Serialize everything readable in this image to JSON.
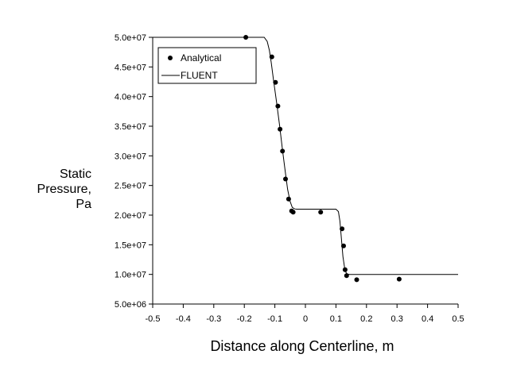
{
  "chart_data": {
    "type": "scatter",
    "title": "",
    "xlabel": "Distance along Centerline, m",
    "ylabel_lines": [
      "Static",
      "Pressure,",
      "Pa"
    ],
    "xlim": [
      -0.5,
      0.5
    ],
    "ylim": [
      5000000,
      50000000
    ],
    "grid": false,
    "legend_position": "top-left",
    "x_ticks": [
      {
        "value": -0.5,
        "label": "-0.5"
      },
      {
        "value": -0.4,
        "label": "-0.4"
      },
      {
        "value": -0.3,
        "label": "-0.3"
      },
      {
        "value": -0.2,
        "label": "-0.2"
      },
      {
        "value": -0.1,
        "label": "-0.1"
      },
      {
        "value": 0.0,
        "label": "0"
      },
      {
        "value": 0.1,
        "label": "0.1"
      },
      {
        "value": 0.2,
        "label": "0.2"
      },
      {
        "value": 0.3,
        "label": "0.3"
      },
      {
        "value": 0.4,
        "label": "0.4"
      },
      {
        "value": 0.5,
        "label": "0.5"
      }
    ],
    "y_ticks": [
      {
        "value": 5000000,
        "label": "5.0e+06"
      },
      {
        "value": 10000000,
        "label": "1.0e+07"
      },
      {
        "value": 15000000,
        "label": "1.5e+07"
      },
      {
        "value": 20000000,
        "label": "2.0e+07"
      },
      {
        "value": 25000000,
        "label": "2.5e+07"
      },
      {
        "value": 30000000,
        "label": "3.0e+07"
      },
      {
        "value": 35000000,
        "label": "3.5e+07"
      },
      {
        "value": 40000000,
        "label": "4.0e+07"
      },
      {
        "value": 45000000,
        "label": "4.5e+07"
      },
      {
        "value": 50000000,
        "label": "5.0e+07"
      }
    ],
    "series": [
      {
        "name": "Analytical",
        "style": "markers",
        "color": "#000000",
        "x": [
          -0.195,
          -0.11,
          -0.098,
          -0.09,
          -0.083,
          -0.075,
          -0.065,
          -0.055,
          -0.045,
          -0.04,
          0.05,
          0.12,
          0.125,
          0.13,
          0.135,
          0.168,
          0.307
        ],
        "y": [
          50000000,
          46700000,
          42400000,
          38400000,
          34500000,
          30800000,
          26100000,
          22700000,
          20700000,
          20500000,
          20500000,
          17700000,
          14800000,
          10800000,
          9800000,
          9100000,
          9200000
        ]
      },
      {
        "name": "FLUENT",
        "style": "line",
        "color": "#000000",
        "x": [
          -0.5,
          -0.135,
          -0.125,
          -0.118,
          -0.112,
          -0.105,
          -0.095,
          -0.085,
          -0.075,
          -0.065,
          -0.058,
          -0.05,
          -0.043,
          -0.035,
          -0.028,
          -0.02,
          0.1,
          0.108,
          0.113,
          0.118,
          0.123,
          0.128,
          0.133,
          0.138,
          0.145,
          0.155,
          0.5
        ],
        "y": [
          50000000,
          50000000,
          49300000,
          47800000,
          45800000,
          43000000,
          39300000,
          35300000,
          31000000,
          27000000,
          24300000,
          22300000,
          21300000,
          21050000,
          21000000,
          21000000,
          21000000,
          20600000,
          19000000,
          16000000,
          13000000,
          11200000,
          10300000,
          10050000,
          10000000,
          10000000,
          10000000
        ]
      }
    ]
  }
}
